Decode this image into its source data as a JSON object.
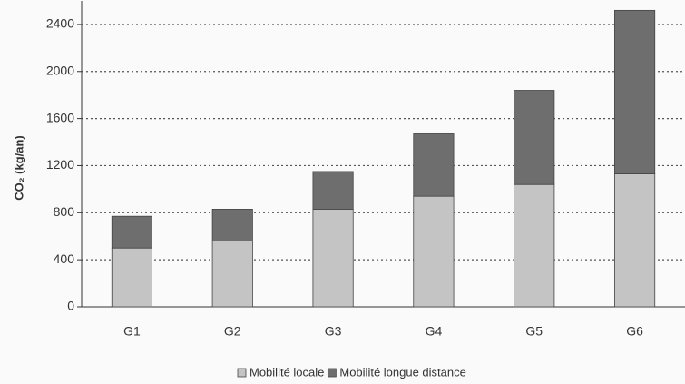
{
  "chart_data": {
    "type": "stacked_bar",
    "y_label": "CO₂ (kg/an)",
    "categories": [
      "G1",
      "G2",
      "G3",
      "G4",
      "G5",
      "G6"
    ],
    "series": [
      {
        "name": "Mobilité locale",
        "color": "#c4c4c4",
        "values": [
          500,
          560,
          830,
          940,
          1040,
          1130
        ]
      },
      {
        "name": "Mobilité longue distance",
        "color": "#6e6e6e",
        "values": [
          270,
          270,
          320,
          530,
          800,
          1390
        ]
      }
    ],
    "ylim": [
      0,
      2600
    ],
    "yticks": [
      0,
      400,
      800,
      1200,
      1600,
      2000,
      2400
    ],
    "grid": true,
    "legend": "bottom"
  }
}
